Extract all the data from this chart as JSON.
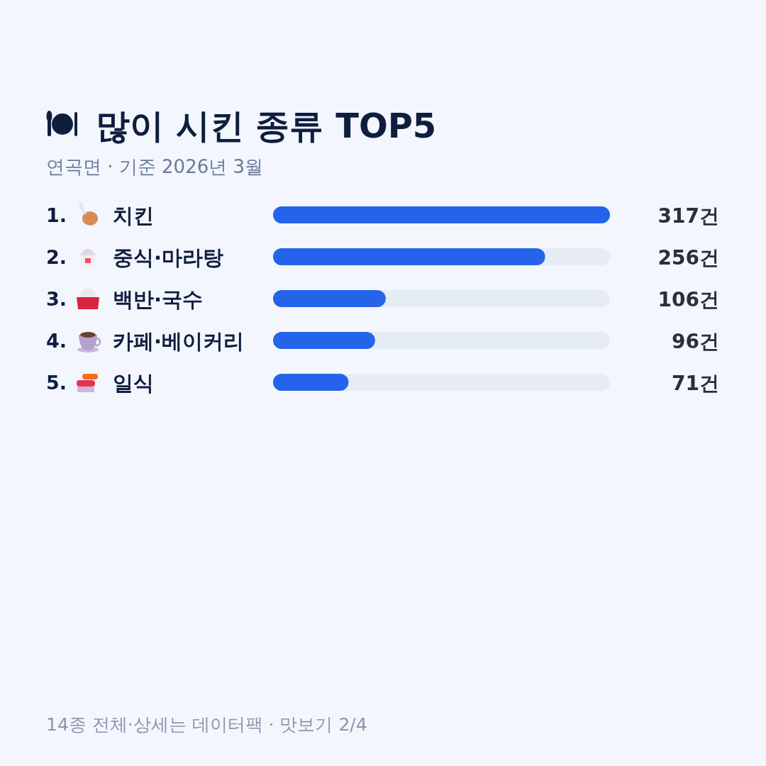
{
  "chart_data": {
    "type": "bar",
    "orientation": "horizontal",
    "title": "많이 시킨 종류 TOP5",
    "subtitle": "연곡면 · 기준 2026년 3월",
    "categories": [
      "치킨",
      "중식·마라탕",
      "백반·국수",
      "카페·베이커리",
      "일식"
    ],
    "values": [
      317,
      256,
      106,
      96,
      71
    ],
    "color": "#2563eb",
    "value_labels": [
      "317건",
      "256건",
      "106건",
      "96건",
      "71건"
    ],
    "annotations": [
      "1.",
      "2.",
      "3.",
      "4.",
      "5.",
      "14종 전체·상세는 데이터팩 · 맛보기 2/4"
    ]
  }
}
